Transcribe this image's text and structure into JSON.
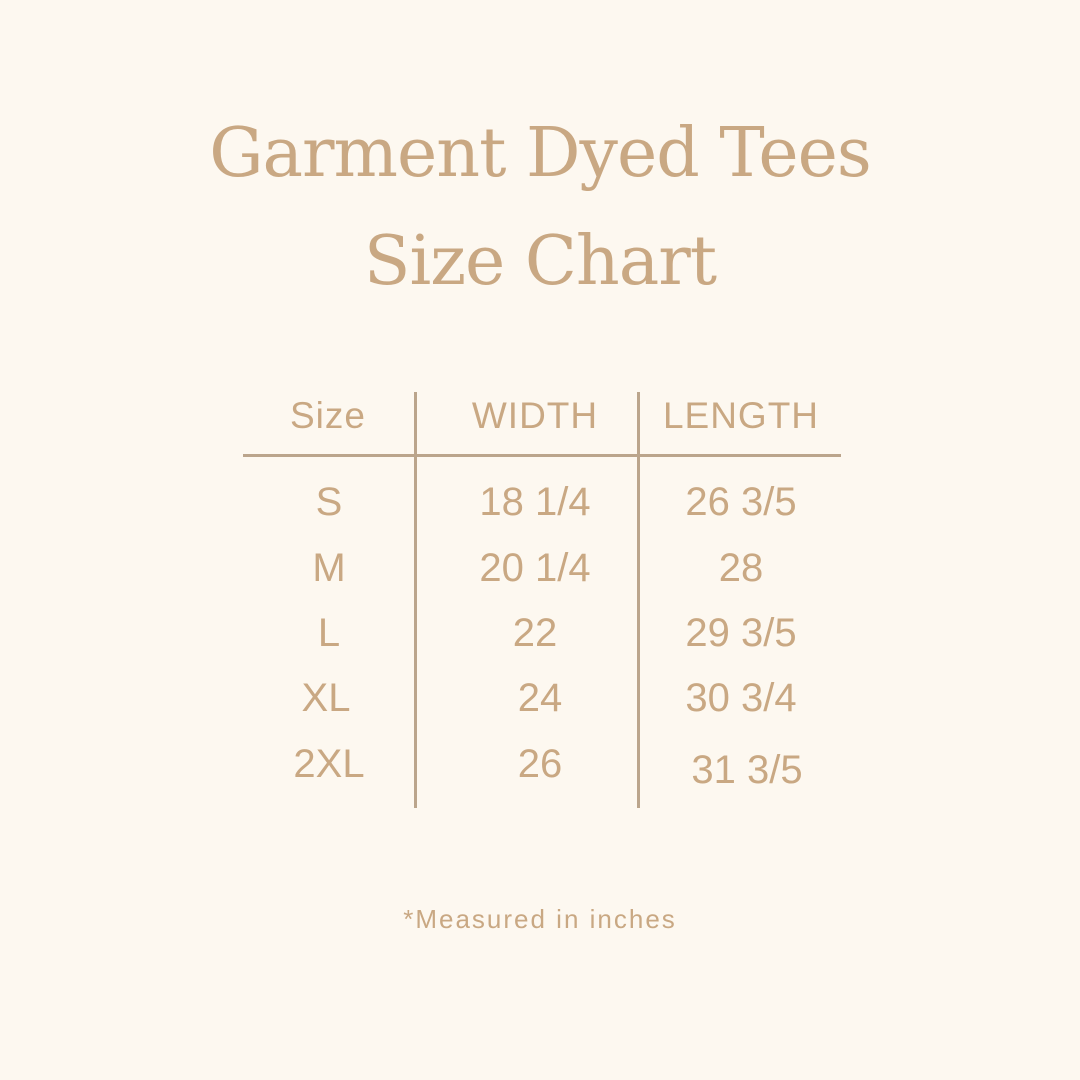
{
  "title": {
    "line1": "Garment Dyed Tees",
    "line2": "Size Chart"
  },
  "table": {
    "headers": [
      "Size",
      "WIDTH",
      "LENGTH"
    ],
    "rows": [
      [
        "S",
        "18 1/4",
        "26 3/5"
      ],
      [
        "M",
        "20 1/4",
        "28"
      ],
      [
        "L",
        "22",
        "29 3/5"
      ],
      [
        "XL",
        "24",
        "30 3/4"
      ],
      [
        "2XL",
        "26",
        "31 3/5"
      ]
    ]
  },
  "footnote": "*Measured in inches",
  "colors": {
    "background": "#fdf8f0",
    "text": "#c9a883",
    "rule": "#bba58c"
  }
}
